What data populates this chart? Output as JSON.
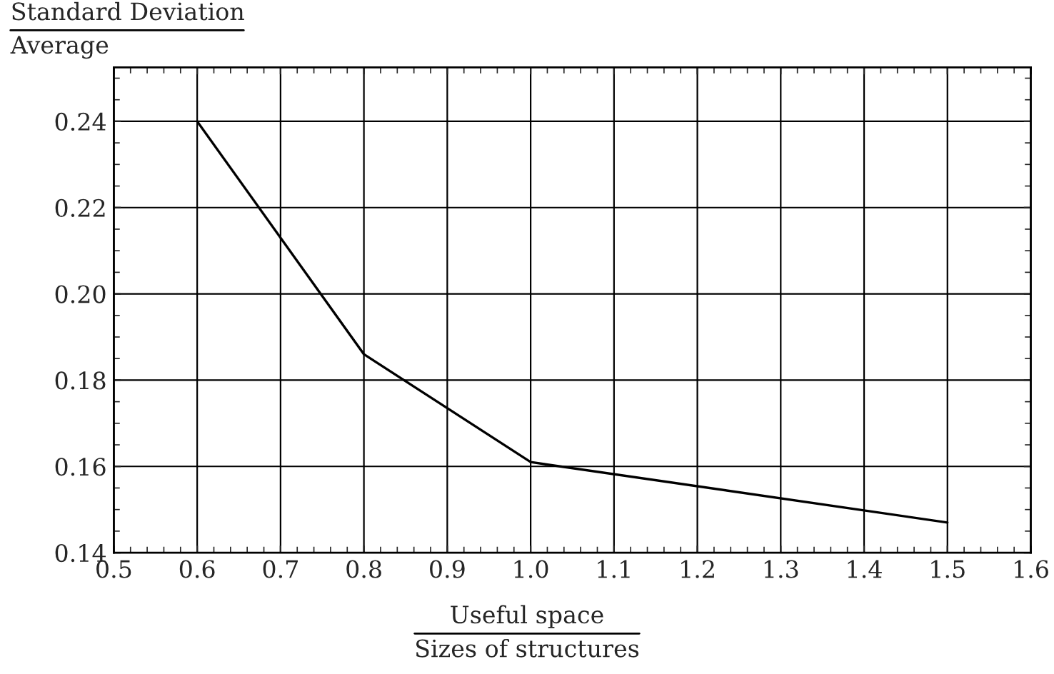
{
  "chart_data": {
    "type": "line",
    "xlabel": "Useful space\nSizes of structures",
    "ylabel": "Standard Deviation\nAverage",
    "x": [
      0.6,
      0.8,
      1.0,
      1.5
    ],
    "series": [
      {
        "color": "#000000",
        "values": [
          0.24,
          0.186,
          0.161,
          0.147
        ]
      }
    ],
    "xlim": [
      0.5,
      1.6
    ],
    "xticks": [
      0.5,
      0.6,
      0.7,
      0.8,
      0.9,
      {
        "value": 1.0,
        "label": "1.0"
      },
      1.1,
      1.2,
      1.3,
      1.4,
      1.5,
      1.6
    ],
    "ylim": [
      0.14,
      0.2525
    ],
    "yticks": [
      0.14,
      0.16,
      0.18,
      {
        "value": 0.2,
        "label": "0.20"
      },
      0.22,
      0.24
    ],
    "grid": true,
    "marker": "none",
    "line_style": "solid"
  }
}
